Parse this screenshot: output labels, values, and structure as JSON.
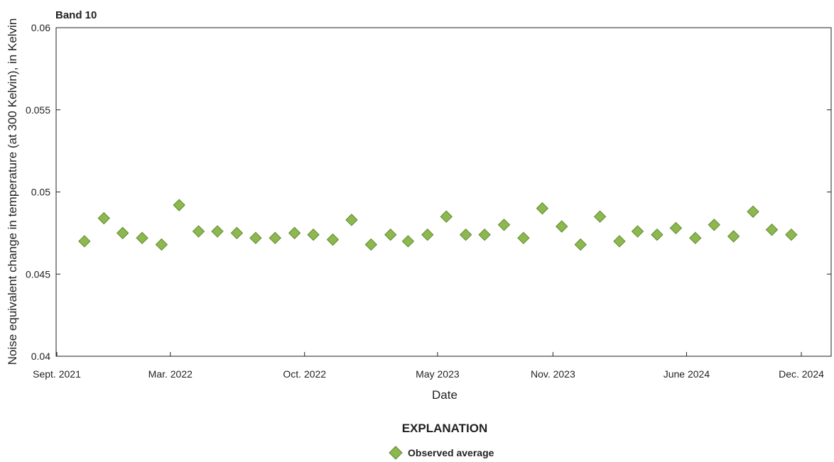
{
  "chart_data": {
    "type": "scatter",
    "title": "Band 10",
    "xlabel": "Date",
    "ylabel": "Noise equivalent change in temperature (at 300 Kelvin), in Kelvin",
    "ylim": [
      0.04,
      0.06
    ],
    "yticks": [
      0.04,
      0.045,
      0.05,
      0.055,
      0.06
    ],
    "ytick_labels": [
      "0.04",
      "0.045",
      "0.05",
      "0.055",
      "0.06"
    ],
    "xlim": [
      "2021-09-01",
      "2024-12-01"
    ],
    "xticks": [
      {
        "date": "2021-09-01",
        "label": "Sept. 2021"
      },
      {
        "date": "2022-03-01",
        "label": "Mar. 2022"
      },
      {
        "date": "2022-10-01",
        "label": "Oct. 2022"
      },
      {
        "date": "2023-05-01",
        "label": "May 2023"
      },
      {
        "date": "2023-11-01",
        "label": "Nov. 2023"
      },
      {
        "date": "2024-06-01",
        "label": "June 2024"
      },
      {
        "date": "2024-12-01",
        "label": "Dec. 2024"
      }
    ],
    "grid": false,
    "legend_title": "EXPLANATION",
    "legend_position": "bottom-center",
    "marker": "diamond",
    "marker_fill": "#8db84f",
    "marker_stroke": "#5e8a2e",
    "series": [
      {
        "name": "Observed average",
        "points": [
          {
            "x": "2021-10-15",
            "y": 0.047
          },
          {
            "x": "2021-11-15",
            "y": 0.0484
          },
          {
            "x": "2021-12-15",
            "y": 0.0475
          },
          {
            "x": "2022-01-15",
            "y": 0.0472
          },
          {
            "x": "2022-02-15",
            "y": 0.0468
          },
          {
            "x": "2022-03-15",
            "y": 0.0492
          },
          {
            "x": "2022-04-15",
            "y": 0.0476
          },
          {
            "x": "2022-05-15",
            "y": 0.0476
          },
          {
            "x": "2022-06-15",
            "y": 0.0475
          },
          {
            "x": "2022-07-15",
            "y": 0.0472
          },
          {
            "x": "2022-08-15",
            "y": 0.0472
          },
          {
            "x": "2022-09-15",
            "y": 0.0475
          },
          {
            "x": "2022-10-15",
            "y": 0.0474
          },
          {
            "x": "2022-11-15",
            "y": 0.0471
          },
          {
            "x": "2022-12-15",
            "y": 0.0483
          },
          {
            "x": "2023-01-15",
            "y": 0.0468
          },
          {
            "x": "2023-02-15",
            "y": 0.0474
          },
          {
            "x": "2023-03-15",
            "y": 0.047
          },
          {
            "x": "2023-04-15",
            "y": 0.0474
          },
          {
            "x": "2023-05-15",
            "y": 0.0485
          },
          {
            "x": "2023-06-15",
            "y": 0.0474
          },
          {
            "x": "2023-07-15",
            "y": 0.0474
          },
          {
            "x": "2023-08-15",
            "y": 0.048
          },
          {
            "x": "2023-09-15",
            "y": 0.0472
          },
          {
            "x": "2023-10-15",
            "y": 0.049
          },
          {
            "x": "2023-11-15",
            "y": 0.0479
          },
          {
            "x": "2023-12-15",
            "y": 0.0468
          },
          {
            "x": "2024-01-15",
            "y": 0.0485
          },
          {
            "x": "2024-02-15",
            "y": 0.047
          },
          {
            "x": "2024-03-15",
            "y": 0.0476
          },
          {
            "x": "2024-04-15",
            "y": 0.0474
          },
          {
            "x": "2024-05-15",
            "y": 0.0478
          },
          {
            "x": "2024-06-15",
            "y": 0.0472
          },
          {
            "x": "2024-07-15",
            "y": 0.048
          },
          {
            "x": "2024-08-15",
            "y": 0.0473
          },
          {
            "x": "2024-09-15",
            "y": 0.0488
          },
          {
            "x": "2024-10-15",
            "y": 0.0477
          },
          {
            "x": "2024-11-15",
            "y": 0.0474
          }
        ]
      }
    ]
  }
}
